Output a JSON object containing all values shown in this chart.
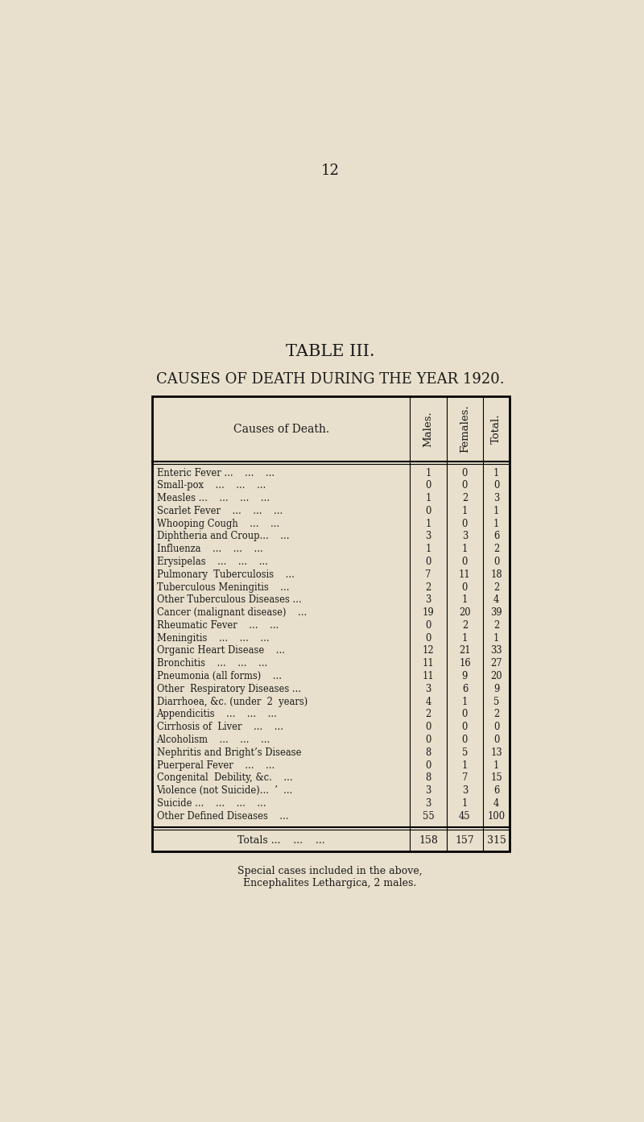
{
  "page_number": "12",
  "title1": "TABLE III.",
  "title2": "CAUSES OF DEATH DURING THE YEAR 1920.",
  "col_headers": [
    "Causes of Death.",
    "Males.",
    "Females.",
    "Total."
  ],
  "rows": [
    [
      "Enteric Fever ...    ...    ...",
      "1",
      "0",
      "1"
    ],
    [
      "Small-pox    ...    ...    ...",
      "0",
      "0",
      "0"
    ],
    [
      "Measles ...    ...    ...    ...",
      "1",
      "2",
      "3"
    ],
    [
      "Scarlet Fever    ...    ...    ...",
      "0",
      "1",
      "1"
    ],
    [
      "Whooping Cough    ...    ...",
      "1",
      "0",
      "1"
    ],
    [
      "Diphtheria and Croup...    ...",
      "3",
      "3",
      "6"
    ],
    [
      "Influenza    ...    ...    ...",
      "1",
      "1",
      "2"
    ],
    [
      "Erysipelas    ...    ...    ...",
      "0",
      "0",
      "0"
    ],
    [
      "Pulmonary  Tuberculosis    ...",
      "7",
      "11",
      "18"
    ],
    [
      "Tuberculous Meningitis    ...",
      "2",
      "0",
      "2"
    ],
    [
      "Other Tuberculous Diseases ...",
      "3",
      "1",
      "4"
    ],
    [
      "Cancer (malignant disease)    ...",
      "19",
      "20",
      "39"
    ],
    [
      "Rheumatic Fever    ...    ...",
      "0",
      "2",
      "2"
    ],
    [
      "Meningitis    ...    ...    ...",
      "0",
      "1",
      "1"
    ],
    [
      "Organic Heart Disease    ...",
      "12",
      "21",
      "33"
    ],
    [
      "Bronchitis    ...    ...    ...",
      "11",
      "16",
      "27"
    ],
    [
      "Pneumonia (all forms)    ...",
      "11",
      "9",
      "20"
    ],
    [
      "Other  Respiratory Diseases ...",
      "3",
      "6",
      "9"
    ],
    [
      "Diarrhoea, &c. (under  2  years)",
      "4",
      "1",
      "5"
    ],
    [
      "Appendicitis    ...    ...    ...",
      "2",
      "0",
      "2"
    ],
    [
      "Cirrhosis of  Liver    ...    ...",
      "0",
      "0",
      "0"
    ],
    [
      "Alcoholism    ...    ...    ...",
      "0",
      "0",
      "0"
    ],
    [
      "Nephritis and Bright’s Disease",
      "8",
      "5",
      "13"
    ],
    [
      "Puerperal Fever    ...    ...",
      "0",
      "1",
      "1"
    ],
    [
      "Congenital  Debility, &c.    ...",
      "8",
      "7",
      "15"
    ],
    [
      "Violence (not Suicide)...  ’  ...",
      "3",
      "3",
      "6"
    ],
    [
      "Suicide ...    ...    ...    ...",
      "3",
      "1",
      "4"
    ],
    [
      "Other Defined Diseases    ...",
      "55",
      "45",
      "100"
    ]
  ],
  "totals_row": [
    "Totals ...    ...    ...",
    "158",
    "157",
    "315"
  ],
  "footnote_line1": "Special cases included in the above,",
  "footnote_line2": "Encephalites Lethargica, 2 males.",
  "bg_color": "#e8e0cc",
  "text_color": "#1a1a1a"
}
